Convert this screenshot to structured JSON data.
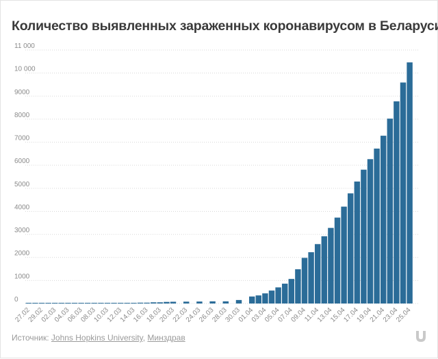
{
  "title": "Количество выявленных зараженных коронавирусом в Беларуси",
  "source": {
    "prefix": "Источник:",
    "links": [
      "Johns Hopkins University",
      "Минздрав"
    ],
    "separator": ", "
  },
  "colors": {
    "bar": "#2b6c98",
    "grid": "#d7d7d7",
    "tick_text": "#8a8a8a",
    "title": "#3a3a3a"
  },
  "logo_icon": "onliner-u-logo-icon",
  "chart_data": {
    "type": "bar",
    "title": "Количество выявленных зараженных коронавирусом в Беларуси",
    "xlabel": "",
    "ylabel": "",
    "ylim": [
      0,
      11000
    ],
    "y_ticks": [
      0,
      1000,
      2000,
      3000,
      4000,
      5000,
      6000,
      7000,
      8000,
      9000,
      10000,
      11000
    ],
    "y_tick_labels": [
      "0",
      "1000",
      "2000",
      "3000",
      "4000",
      "5000",
      "6000",
      "7000",
      "8000",
      "9000",
      "10 000",
      "11 000"
    ],
    "grid": true,
    "legend": "none",
    "categories": [
      "27.02",
      "28.02",
      "29.02",
      "01.03",
      "02.03",
      "03.03",
      "04.03",
      "05.03",
      "06.03",
      "07.03",
      "08.03",
      "09.03",
      "10.03",
      "11.03",
      "12.03",
      "13.03",
      "14.03",
      "15.03",
      "16.03",
      "17.03",
      "18.03",
      "19.03",
      "20.03",
      "21.03",
      "22.03",
      "23.03",
      "24.03",
      "25.03",
      "26.03",
      "27.03",
      "28.03",
      "29.03",
      "30.03",
      "31.03",
      "01.04",
      "02.04",
      "03.04",
      "04.04",
      "05.04",
      "06.04",
      "07.04",
      "08.04",
      "09.04",
      "10.04",
      "11.04",
      "12.04",
      "13.04",
      "14.04",
      "15.04",
      "16.04",
      "17.04",
      "18.04",
      "19.04",
      "20.04",
      "21.04",
      "22.04",
      "23.04",
      "24.04",
      "25.04",
      "26.04"
    ],
    "x_tick_labels": [
      "27.02",
      "29.02",
      "02.03",
      "04.03",
      "06.03",
      "08.03",
      "10.03",
      "12.03",
      "14.03",
      "16.03",
      "18.03",
      "20.03",
      "22.03",
      "24.03",
      "26.03",
      "28.03",
      "30.03",
      "01.04",
      "03.04",
      "05.04",
      "07.04",
      "09.04",
      "11.04",
      "13.04",
      "15.04",
      "17.04",
      "19.04",
      "21.04",
      "23.04",
      "25.04"
    ],
    "values": [
      1,
      1,
      1,
      1,
      6,
      6,
      6,
      6,
      6,
      6,
      6,
      6,
      9,
      9,
      21,
      27,
      27,
      36,
      36,
      51,
      51,
      69,
      76,
      0,
      81,
      0,
      86,
      0,
      94,
      0,
      94,
      0,
      152,
      0,
      304,
      351,
      440,
      562,
      700,
      861,
      1066,
      1486,
      1981,
      2226,
      2578,
      2919,
      3281,
      3728,
      4204,
      4779,
      5293,
      5807,
      6264,
      6723,
      7281,
      8022,
      8773,
      9590,
      10463,
      0
    ]
  }
}
